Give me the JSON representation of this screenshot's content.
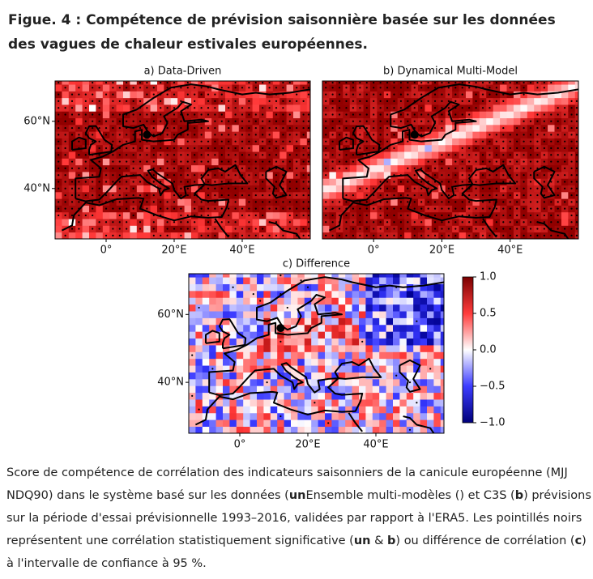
{
  "title": "Figue. 4 : Compétence de prévision saisonnière basée sur les données des vagues de chaleur estivales européennes.",
  "panels": [
    {
      "id": "a",
      "title": "a) Data-Driven"
    },
    {
      "id": "b",
      "title": "b) Dynamical Multi-Model"
    },
    {
      "id": "c",
      "title": "c) Difference"
    }
  ],
  "map_axes": {
    "xlim": [
      -15,
      60
    ],
    "ylim": [
      25,
      72
    ],
    "xticks": [
      {
        "value": 0,
        "label": "0°"
      },
      {
        "value": 20,
        "label": "20°E"
      },
      {
        "value": 40,
        "label": "40°E"
      }
    ],
    "yticks": [
      {
        "value": 40,
        "label": "40°N"
      },
      {
        "value": 60,
        "label": "60°N"
      }
    ]
  },
  "colorbar": {
    "lim": [
      -1,
      1
    ],
    "ticks": [
      {
        "value": 1,
        "label": "1.0"
      },
      {
        "value": 0.5,
        "label": "0.5"
      },
      {
        "value": 0,
        "label": "0.0"
      },
      {
        "value": -0.5,
        "label": "−0.5"
      },
      {
        "value": -1,
        "label": "−1.0"
      }
    ]
  },
  "caption": [
    {
      "text": "Score de compétence de corrélation des indicateurs saisonniers de la canicule européenne (MJJ NDQ90) dans le système basé sur les données (",
      "bold": false
    },
    {
      "text": "un",
      "bold": true
    },
    {
      "text": "Ensemble multi-modèles () et C3S (",
      "bold": false
    },
    {
      "text": "b",
      "bold": true
    },
    {
      "text": ") prévisions sur la période d'essai prévisionnelle 1993–2016, validées par rapport à l'ERA5. Les pointillés noirs représentent une corrélation statistiquement significative (",
      "bold": false
    },
    {
      "text": "un",
      "bold": true
    },
    {
      "text": " & ",
      "bold": false
    },
    {
      "text": "b",
      "bold": true
    },
    {
      "text": ") ou différence de corrélation (",
      "bold": false
    },
    {
      "text": "c",
      "bold": true
    },
    {
      "text": ") à l'intervalle de confiance à 95 %.",
      "bold": false
    }
  ]
}
